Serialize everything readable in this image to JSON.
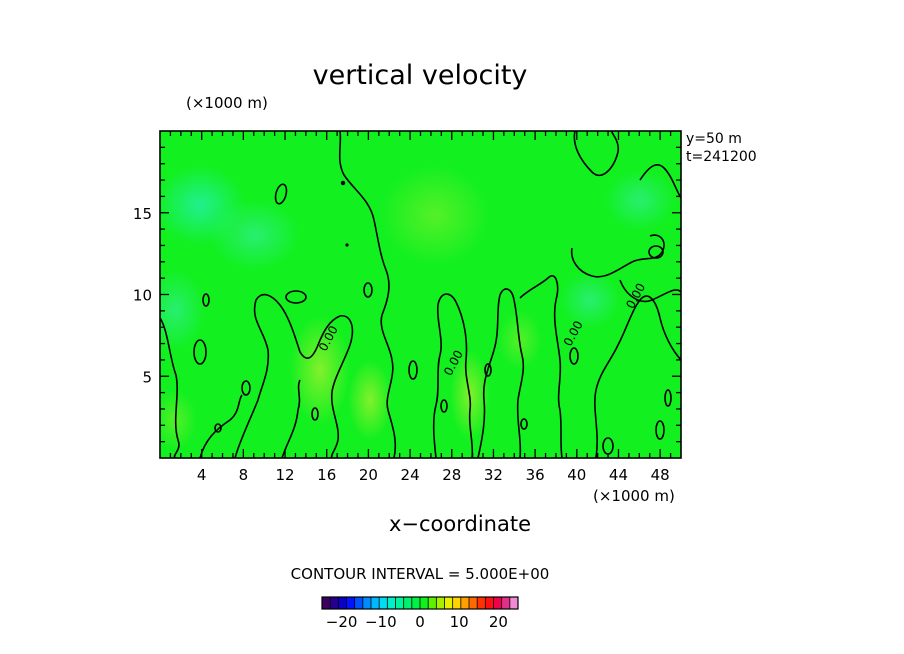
{
  "chart_data": {
    "type": "heatmap",
    "title": "vertical velocity",
    "xlabel": "x−coordinate",
    "x_unit": "(×1000 m)",
    "y_unit": "(×1000 m)",
    "xlim": [
      0,
      50
    ],
    "ylim": [
      0,
      20
    ],
    "x_ticks": [
      4,
      8,
      12,
      16,
      20,
      24,
      28,
      32,
      36,
      40,
      44,
      48
    ],
    "y_ticks": [
      5,
      10,
      15
    ],
    "info": [
      "y=50 m",
      "t=241200"
    ],
    "contour_interval_text": "CONTOUR INTERVAL = 5.000E+00",
    "contour_labels": [
      {
        "text": "0.00",
        "x": 16.5,
        "y": 7.2
      },
      {
        "text": "0.00",
        "x": 28.5,
        "y": 5.7
      },
      {
        "text": "0.00",
        "x": 40.0,
        "y": 7.5
      },
      {
        "text": "0.00",
        "x": 46.0,
        "y": 9.8
      }
    ],
    "colorbar": {
      "range": [
        -25,
        25
      ],
      "ticks": [
        -20,
        -10,
        0,
        10,
        20
      ],
      "colors": [
        "#3b0060",
        "#24008c",
        "#0a00c8",
        "#0014ff",
        "#0050ff",
        "#008cff",
        "#00b8ff",
        "#00dcf0",
        "#00f0c8",
        "#00f59a",
        "#00f06e",
        "#00f046",
        "#10f020",
        "#5ef000",
        "#a8f000",
        "#e8f000",
        "#ffd400",
        "#ffa000",
        "#ff6a00",
        "#ff3200",
        "#ff1010",
        "#f0004a",
        "#e0308a",
        "#f08ad2"
      ]
    }
  }
}
